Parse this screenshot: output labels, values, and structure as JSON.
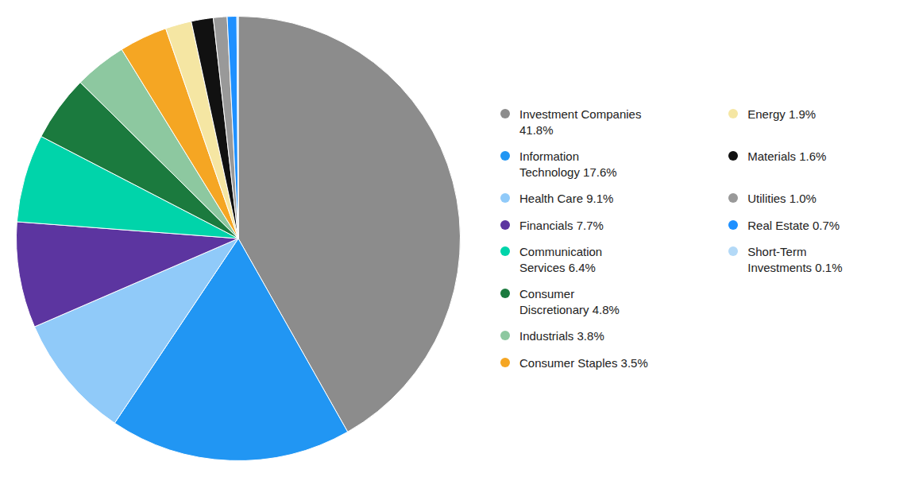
{
  "chart_data": {
    "type": "pie",
    "categories": [
      "Investment Companies\n41.8%",
      "Information\nTechnology 17.6%",
      "Health Care 9.1%",
      "Financials 7.7%",
      "Communication\nServices 6.4%",
      "Consumer\nDiscretionary 4.8%",
      "Industrials 3.8%",
      "Consumer Staples 3.5%",
      "Energy 1.9%",
      "Materials 1.6%",
      "Utilities 1.0%",
      "Real Estate 0.7%",
      "Short-Term\nInvestments 0.1%"
    ],
    "values": [
      41.8,
      17.6,
      9.1,
      7.7,
      6.4,
      4.8,
      3.8,
      3.5,
      1.9,
      1.6,
      1.0,
      0.7,
      0.1
    ],
    "colors": [
      "#8c8c8c",
      "#2196F3",
      "#90CAF9",
      "#5C35A0",
      "#00D4AA",
      "#1B7A3E",
      "#8DC8A0",
      "#F5A623",
      "#F5E6A3",
      "#111111",
      "#999999",
      "#1E90FF",
      "#B3D9F7"
    ],
    "legend": "right"
  }
}
